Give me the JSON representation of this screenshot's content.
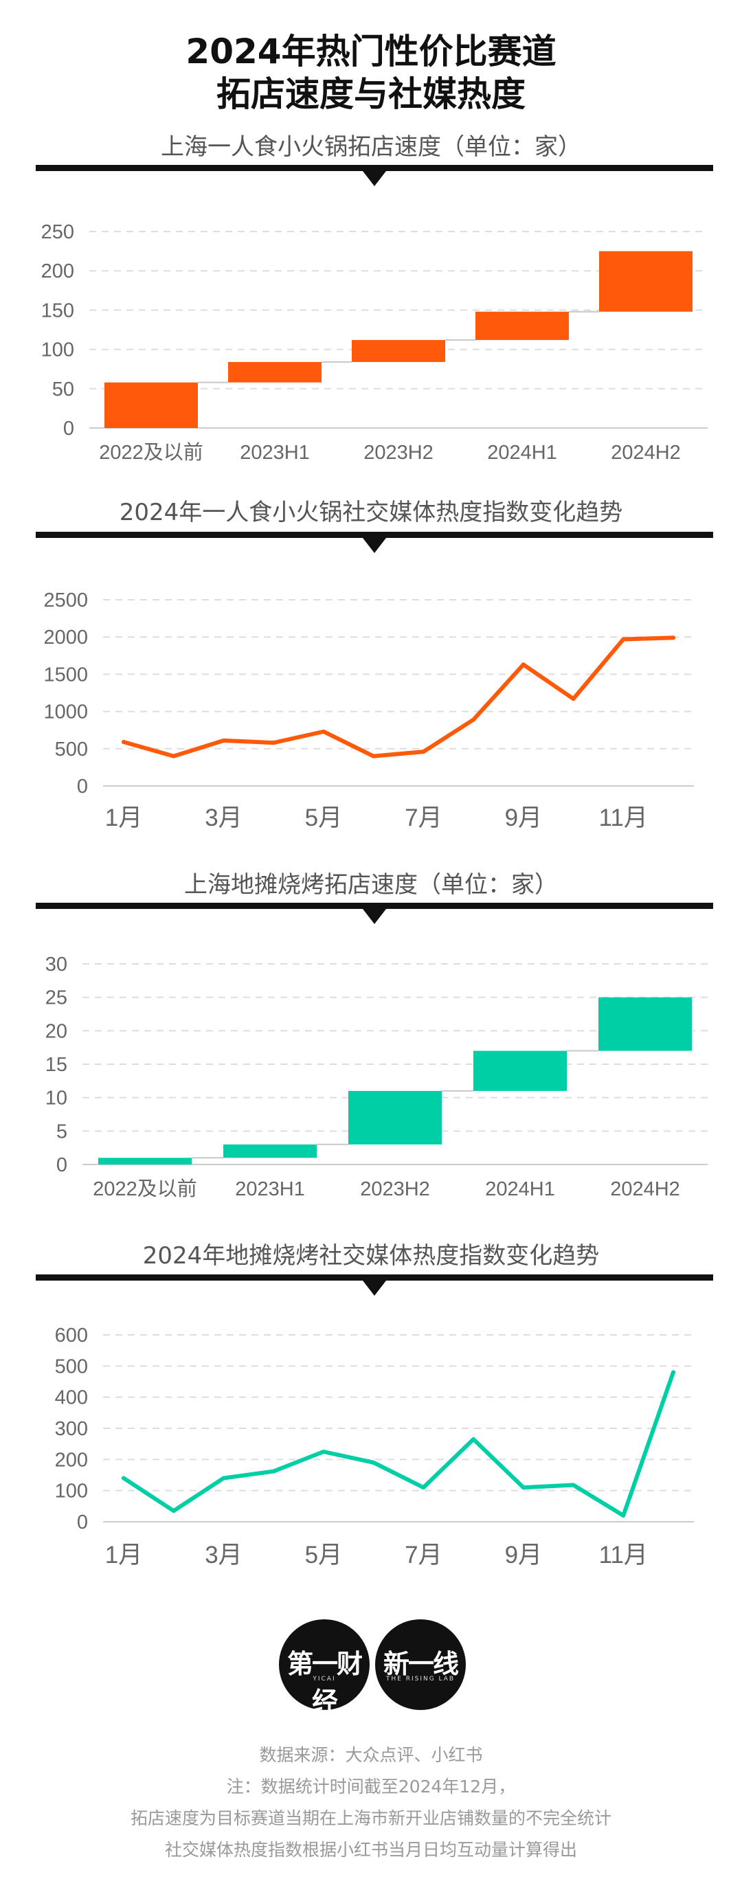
{
  "header": {
    "title_line1": "2024年热门性价比赛道",
    "title_line2": "拓店速度与社媒热度"
  },
  "colors": {
    "orange": "#FF5A0A",
    "teal": "#00CFA6",
    "divider": "#111111",
    "grid": "#DDDDDD",
    "connector": "#C8C8C8"
  },
  "chart_data": [
    {
      "type": "bar",
      "subtype": "waterfall",
      "title": "上海一人食小火锅拓店速度（单位：家）",
      "categories": [
        "2022及以前",
        "2023H1",
        "2023H2",
        "2024H1",
        "2024H2"
      ],
      "values": [
        58,
        26,
        28,
        36,
        77
      ],
      "cumulative": [
        58,
        84,
        112,
        148,
        225
      ],
      "yticks": [
        0,
        50,
        100,
        150,
        200,
        250
      ],
      "ylim": [
        0,
        250
      ],
      "color": "#FF5A0A",
      "grid": true
    },
    {
      "type": "line",
      "title": "2024年一人食小火锅社交媒体热度指数变化趋势",
      "x": [
        "1月",
        "2月",
        "3月",
        "4月",
        "5月",
        "6月",
        "7月",
        "8月",
        "9月",
        "10月",
        "11月",
        "12月"
      ],
      "xticks": [
        "1月",
        "3月",
        "5月",
        "7月",
        "9月",
        "11月"
      ],
      "values": [
        590,
        400,
        610,
        580,
        730,
        400,
        460,
        890,
        1630,
        1170,
        1970,
        1990
      ],
      "yticks": [
        0,
        500,
        1000,
        1500,
        2000,
        2500
      ],
      "ylim": [
        0,
        2500
      ],
      "color": "#FF5A0A",
      "grid": true
    },
    {
      "type": "bar",
      "subtype": "waterfall",
      "title": "上海地摊烧烤拓店速度（单位：家）",
      "categories": [
        "2022及以前",
        "2023H1",
        "2023H2",
        "2024H1",
        "2024H2"
      ],
      "values": [
        1,
        2,
        8,
        6,
        8
      ],
      "cumulative": [
        1,
        3,
        11,
        17,
        25
      ],
      "yticks": [
        0,
        5,
        10,
        15,
        20,
        25,
        30
      ],
      "ylim": [
        0,
        30
      ],
      "color": "#00CFA6",
      "grid": true
    },
    {
      "type": "line",
      "title": "2024年地摊烧烤社交媒体热度指数变化趋势",
      "x": [
        "1月",
        "2月",
        "3月",
        "4月",
        "5月",
        "6月",
        "7月",
        "8月",
        "9月",
        "10月",
        "11月",
        "12月"
      ],
      "xticks": [
        "1月",
        "3月",
        "5月",
        "7月",
        "9月",
        "11月"
      ],
      "values": [
        140,
        35,
        140,
        162,
        225,
        190,
        110,
        265,
        110,
        118,
        20,
        480
      ],
      "yticks": [
        0,
        100,
        200,
        300,
        400,
        500,
        600
      ],
      "ylim": [
        0,
        600
      ],
      "color": "#00CFA6",
      "grid": true
    }
  ],
  "logos": {
    "yicai": {
      "name": "第一财经",
      "sub": "YICAI"
    },
    "rising": {
      "name": "新一线",
      "sub": "THE RISING LAB"
    }
  },
  "footer": {
    "line1": "数据来源：大众点评、小红书",
    "line2": "注：数据统计时间截至2024年12月，",
    "line3": "拓店速度为目标赛道当期在上海市新开业店铺数量的不完全统计",
    "line4": "社交媒体热度指数根据小红书当月日均互动量计算得出"
  }
}
